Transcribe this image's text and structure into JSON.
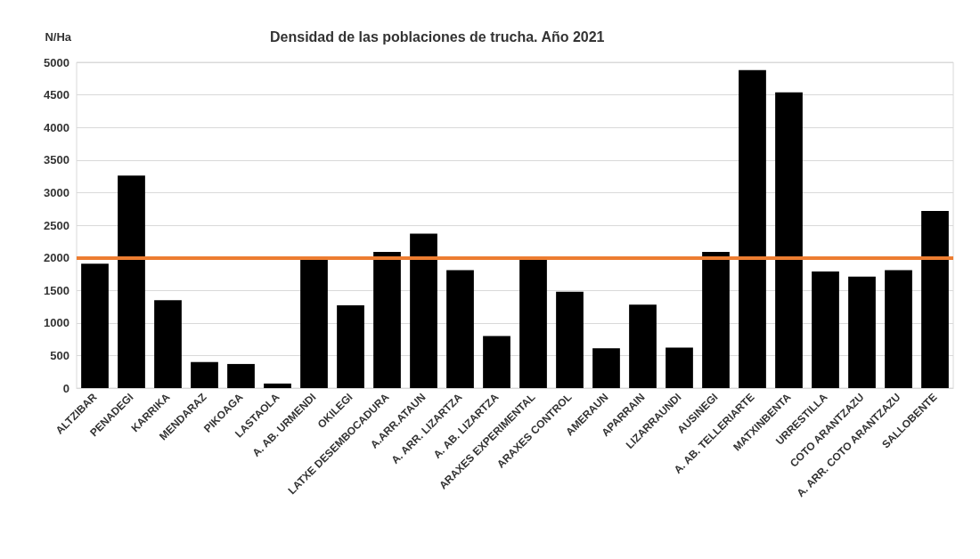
{
  "chart_data": {
    "type": "bar",
    "title": "Densidad de las poblaciones de trucha. Año 2021",
    "ylabel": "N/Ha",
    "categories": [
      "ALTZIBAR",
      "PENADEGI",
      "KARRIKA",
      "MENDARAZ",
      "PIKOAGA",
      "LASTAOLA",
      "A. AB. URMENDI",
      "OKILEGI",
      "LATXE DESEMBOCADURA",
      "A.ARR.ATAUN",
      "A. ARR. LIZARTZA",
      "A. AB. LIZARTZA",
      "ARAXES EXPERIMENTAL",
      "ARAXES CONTROL",
      "AMERAUN",
      "APARRAIN",
      "LIZARRAUNDI",
      "AUSINEGI",
      "A. AB. TELLERIARTE",
      "MATXINBENTA",
      "URRESTILLA",
      "COTO ARANTZAZU",
      "A. ARR. COTO ARANTZAZU",
      "SALLOBENTE"
    ],
    "values": [
      1910,
      3260,
      1350,
      400,
      370,
      70,
      2000,
      1270,
      2090,
      2370,
      1810,
      800,
      2000,
      1480,
      610,
      1280,
      620,
      2090,
      4880,
      4540,
      1790,
      1710,
      1810,
      2720
    ],
    "color": "#000000",
    "ylim": [
      0,
      5000
    ],
    "yticks": [
      0,
      500,
      1000,
      1500,
      2000,
      2500,
      3000,
      3500,
      4000,
      4500,
      5000
    ],
    "grid": "y",
    "ref_lines": [
      {
        "axis": "y",
        "value": 2000,
        "color": "#ed7d31"
      }
    ]
  }
}
